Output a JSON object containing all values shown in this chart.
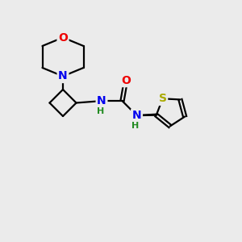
{
  "background_color": "#ebebeb",
  "atom_colors": {
    "C": "#000000",
    "N": "#0000ee",
    "O": "#ee0000",
    "S": "#aaaa00",
    "H": "#228B22"
  },
  "bond_color": "#000000",
  "bond_width": 1.6,
  "figsize": [
    3.0,
    3.0
  ],
  "dpi": 100
}
